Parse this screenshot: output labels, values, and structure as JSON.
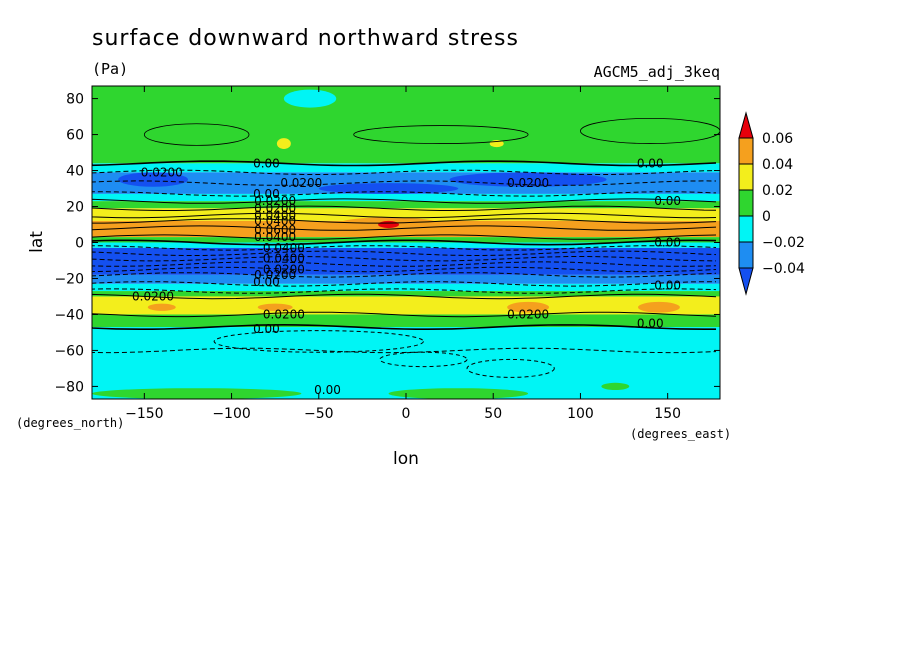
{
  "chart_data": {
    "type": "heatmap",
    "title": "surface downward northward stress",
    "units": "(Pa)",
    "dataset": "AGCM5_adj_3keq",
    "xlabel": "lon",
    "ylabel": "lat",
    "x_unit": "(degrees_east)",
    "y_unit": "(degrees_north)",
    "xlim": [
      -180,
      180
    ],
    "ylim": [
      -87,
      87
    ],
    "x_ticks": [
      -150,
      -100,
      -50,
      0,
      50,
      100,
      150
    ],
    "y_ticks": [
      80,
      60,
      40,
      20,
      0,
      -20,
      -40,
      -60,
      -80
    ],
    "colorbar": {
      "levels": [
        0.06,
        0.04,
        0.02,
        0,
        -0.02,
        -0.04
      ],
      "labels": [
        "0.06",
        "0.04",
        "0.02",
        "0",
        "−0.02",
        "−0.04"
      ],
      "colors": [
        "#e8000b",
        "#f5a01e",
        "#f3ee1c",
        "#2fd62f",
        "#00f5f5",
        "#1e8df2",
        "#1450f0"
      ]
    },
    "zonal_bands": [
      {
        "lat_from": 87,
        "lat_to": 44,
        "value": 0.005
      },
      {
        "lat_from": 44,
        "lat_to": 39,
        "value": -0.012
      },
      {
        "lat_from": 39,
        "lat_to": 27,
        "value": -0.03
      },
      {
        "lat_from": 27,
        "lat_to": 23,
        "value": -0.01
      },
      {
        "lat_from": 23,
        "lat_to": 19,
        "value": 0.01
      },
      {
        "lat_from": 19,
        "lat_to": 12,
        "value": 0.03
      },
      {
        "lat_from": 12,
        "lat_to": 3,
        "value": 0.045
      },
      {
        "lat_from": 3,
        "lat_to": 0,
        "value": 0.015
      },
      {
        "lat_from": 0,
        "lat_to": -3,
        "value": -0.01
      },
      {
        "lat_from": -3,
        "lat_to": -18,
        "value": -0.05
      },
      {
        "lat_from": -18,
        "lat_to": -23,
        "value": -0.03
      },
      {
        "lat_from": -23,
        "lat_to": -27,
        "value": -0.01
      },
      {
        "lat_from": -27,
        "lat_to": -30,
        "value": 0.01
      },
      {
        "lat_from": -30,
        "lat_to": -40,
        "value": 0.03
      },
      {
        "lat_from": -40,
        "lat_to": -47,
        "value": 0.01
      },
      {
        "lat_from": -47,
        "lat_to": -87,
        "value": -0.012
      }
    ],
    "contour_labels": [
      "0.00",
      "0.0200",
      "0.0400",
      "0.0600"
    ]
  }
}
